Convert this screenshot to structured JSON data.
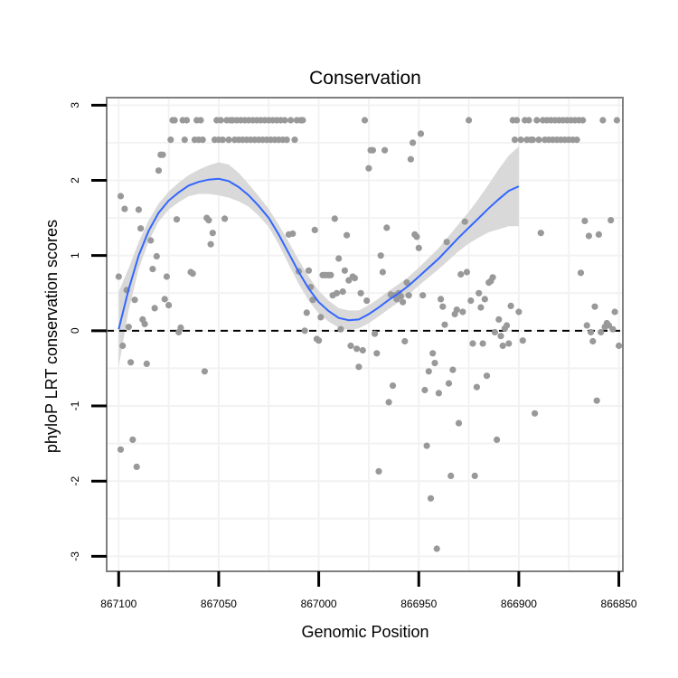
{
  "chart_data": {
    "type": "scatter",
    "title": "Conservation",
    "xlabel": "Genomic Position",
    "ylabel": "phyloP LRT conservation scores",
    "x_reversed": true,
    "xlim": [
      867106,
      866848
    ],
    "ylim": [
      -3.2,
      3.1
    ],
    "x_ticks": [
      867100,
      867050,
      867000,
      866950,
      866900,
      866850
    ],
    "x_tick_labels": [
      "867100",
      "867050",
      "867000",
      "866950",
      "866900",
      "866850"
    ],
    "y_ticks": [
      3,
      2,
      1,
      0,
      -1,
      -2,
      -3
    ],
    "y_tick_labels": [
      "3",
      "2",
      "1",
      "0",
      "-1",
      "-2",
      "-3"
    ],
    "reference_line": {
      "y": 0,
      "style": "dashed",
      "color": "#000000"
    },
    "grid": true,
    "colors": {
      "points": "#999999",
      "smooth_line": "#3366ff",
      "ribbon": "#d9d9d9",
      "panel_border": "#7f7f7f",
      "grid": "#f2f2f2"
    },
    "series": [
      {
        "type": "scatter",
        "points": [
          [
            867100,
            0.72
          ],
          [
            867099,
            1.79
          ],
          [
            867099,
            -1.58
          ],
          [
            867098,
            -0.2
          ],
          [
            867097,
            1.62
          ],
          [
            867096,
            0.54
          ],
          [
            867095,
            0.05
          ],
          [
            867094,
            -0.42
          ],
          [
            867093,
            -1.45
          ],
          [
            867092,
            0.41
          ],
          [
            867091,
            -1.81
          ],
          [
            867090,
            1.61
          ],
          [
            867089,
            1.36
          ],
          [
            867088,
            0.15
          ],
          [
            867087,
            0.09
          ],
          [
            867086,
            -0.44
          ],
          [
            867084,
            1.2
          ],
          [
            867083,
            0.82
          ],
          [
            867082,
            0.3
          ],
          [
            867081,
            0.99
          ],
          [
            867080,
            2.13
          ],
          [
            867079,
            2.34
          ],
          [
            867078,
            2.34
          ],
          [
            867077,
            0.42
          ],
          [
            867076,
            0.72
          ],
          [
            867075,
            0.34
          ],
          [
            867074,
            2.54
          ],
          [
            867073,
            2.8
          ],
          [
            867072,
            2.8
          ],
          [
            867071,
            1.48
          ],
          [
            867070,
            -0.02
          ],
          [
            867069,
            0.04
          ],
          [
            867068,
            2.8
          ],
          [
            867067,
            2.54
          ],
          [
            867066,
            2.8
          ],
          [
            867064,
            0.78
          ],
          [
            867063,
            0.76
          ],
          [
            867062,
            2.54
          ],
          [
            867061,
            2.8
          ],
          [
            867060,
            2.54
          ],
          [
            867059,
            2.8
          ],
          [
            867058,
            2.54
          ],
          [
            867057,
            -0.54
          ],
          [
            867056,
            1.5
          ],
          [
            867055,
            1.47
          ],
          [
            867054,
            1.15
          ],
          [
            867053,
            1.3
          ],
          [
            867052,
            2.54
          ],
          [
            867051,
            2.8
          ],
          [
            867050,
            2.54
          ],
          [
            867049,
            2.8
          ],
          [
            867048,
            2.54
          ],
          [
            867047,
            1.49
          ],
          [
            867046,
            2.8
          ],
          [
            867045,
            2.54
          ],
          [
            867044,
            2.8
          ],
          [
            867043,
            2.8
          ],
          [
            867042,
            2.54
          ],
          [
            867041,
            2.8
          ],
          [
            867040,
            2.54
          ],
          [
            867039,
            2.8
          ],
          [
            867038,
            2.54
          ],
          [
            867037,
            2.8
          ],
          [
            867036,
            2.54
          ],
          [
            867035,
            2.8
          ],
          [
            867034,
            2.54
          ],
          [
            867033,
            2.8
          ],
          [
            867032,
            2.54
          ],
          [
            867031,
            2.8
          ],
          [
            867030,
            2.54
          ],
          [
            867029,
            2.8
          ],
          [
            867028,
            2.54
          ],
          [
            867027,
            2.8
          ],
          [
            867026,
            2.54
          ],
          [
            867025,
            2.8
          ],
          [
            867024,
            2.54
          ],
          [
            867023,
            2.8
          ],
          [
            867022,
            2.54
          ],
          [
            867021,
            2.8
          ],
          [
            867020,
            2.54
          ],
          [
            867019,
            2.8
          ],
          [
            867018,
            2.54
          ],
          [
            867017,
            2.8
          ],
          [
            867016,
            2.54
          ],
          [
            867015,
            1.28
          ],
          [
            867014,
            2.8
          ],
          [
            867013,
            1.29
          ],
          [
            867012,
            2.54
          ],
          [
            867011,
            2.8
          ],
          [
            867010,
            0.79
          ],
          [
            867009,
            2.8
          ],
          [
            867008,
            2.8
          ],
          [
            867007,
            0.0
          ],
          [
            867006,
            0.24
          ],
          [
            867005,
            0.8
          ],
          [
            867004,
            0.58
          ],
          [
            867003,
            0.41
          ],
          [
            867002,
            1.34
          ],
          [
            867001,
            -0.11
          ],
          [
            867000,
            -0.13
          ],
          [
            866999,
            0.18
          ],
          [
            866998,
            0.74
          ],
          [
            866997,
            0.74
          ],
          [
            866996,
            0.74
          ],
          [
            866995,
            0.74
          ],
          [
            866994,
            0.74
          ],
          [
            866993,
            0.47
          ],
          [
            866992,
            1.49
          ],
          [
            866991,
            0.5
          ],
          [
            866990,
            0.96
          ],
          [
            866989,
            0.02
          ],
          [
            866988,
            0.52
          ],
          [
            866987,
            0.8
          ],
          [
            866986,
            1.27
          ],
          [
            866985,
            0.67
          ],
          [
            866984,
            -0.2
          ],
          [
            866983,
            0.72
          ],
          [
            866982,
            0.7
          ],
          [
            866981,
            -0.24
          ],
          [
            866980,
            -0.48
          ],
          [
            866979,
            0.5
          ],
          [
            866978,
            -0.26
          ],
          [
            866977,
            2.8
          ],
          [
            866976,
            0.4
          ],
          [
            866975,
            2.16
          ],
          [
            866974,
            2.4
          ],
          [
            866973,
            2.4
          ],
          [
            866972,
            -0.04
          ],
          [
            866971,
            -0.3
          ],
          [
            866970,
            -1.87
          ],
          [
            866969,
            1.0
          ],
          [
            866968,
            0.78
          ],
          [
            866967,
            2.4
          ],
          [
            866966,
            1.37
          ],
          [
            866965,
            -0.95
          ],
          [
            866964,
            0.48
          ],
          [
            866963,
            -0.73
          ],
          [
            866962,
            0.47
          ],
          [
            866961,
            0.42
          ],
          [
            866960,
            0.5
          ],
          [
            866959,
            0.46
          ],
          [
            866958,
            0.38
          ],
          [
            866957,
            -0.14
          ],
          [
            866956,
            0.64
          ],
          [
            866955,
            0.47
          ],
          [
            866954,
            2.28
          ],
          [
            866953,
            2.5
          ],
          [
            866952,
            1.28
          ],
          [
            866951,
            1.25
          ],
          [
            866950,
            1.1
          ],
          [
            866949,
            2.62
          ],
          [
            866948,
            0.47
          ],
          [
            866947,
            -0.79
          ],
          [
            866946,
            -1.53
          ],
          [
            866945,
            -0.54
          ],
          [
            866944,
            -2.23
          ],
          [
            866943,
            -0.3
          ],
          [
            866942,
            -0.43
          ],
          [
            866941,
            -2.9
          ],
          [
            866940,
            -0.83
          ],
          [
            866939,
            0.42
          ],
          [
            866938,
            0.32
          ],
          [
            866937,
            0.08
          ],
          [
            866936,
            1.18
          ],
          [
            866935,
            -0.7
          ],
          [
            866934,
            -1.93
          ],
          [
            866933,
            -0.52
          ],
          [
            866932,
            0.22
          ],
          [
            866931,
            0.28
          ],
          [
            866930,
            -1.23
          ],
          [
            866929,
            0.75
          ],
          [
            866928,
            0.25
          ],
          [
            866927,
            1.45
          ],
          [
            866926,
            0.78
          ],
          [
            866925,
            2.8
          ],
          [
            866924,
            0.4
          ],
          [
            866923,
            -0.17
          ],
          [
            866922,
            -1.93
          ],
          [
            866921,
            -0.75
          ],
          [
            866920,
            0.5
          ],
          [
            866919,
            0.31
          ],
          [
            866918,
            -0.17
          ],
          [
            866917,
            0.42
          ],
          [
            866916,
            -0.6
          ],
          [
            866915,
            0.64
          ],
          [
            866914,
            0.66
          ],
          [
            866913,
            0.71
          ],
          [
            866912,
            -0.02
          ],
          [
            866911,
            -1.45
          ],
          [
            866910,
            0.15
          ],
          [
            866909,
            -0.07
          ],
          [
            866908,
            -0.2
          ],
          [
            866907,
            0.03
          ],
          [
            866906,
            0.07
          ],
          [
            866905,
            -0.17
          ],
          [
            866904,
            0.33
          ],
          [
            866903,
            2.8
          ],
          [
            866902,
            2.54
          ],
          [
            866901,
            2.8
          ],
          [
            866900,
            0.25
          ],
          [
            866899,
            2.54
          ],
          [
            866898,
            -0.13
          ],
          [
            866897,
            2.8
          ],
          [
            866896,
            2.54
          ],
          [
            866895,
            2.8
          ],
          [
            866894,
            2.54
          ],
          [
            866893,
            2.54
          ],
          [
            866892,
            -1.1
          ],
          [
            866891,
            2.8
          ],
          [
            866890,
            2.54
          ],
          [
            866889,
            1.3
          ],
          [
            866888,
            2.8
          ],
          [
            866887,
            2.54
          ],
          [
            866886,
            2.8
          ],
          [
            866885,
            2.54
          ],
          [
            866884,
            2.8
          ],
          [
            866883,
            2.54
          ],
          [
            866882,
            2.8
          ],
          [
            866881,
            2.54
          ],
          [
            866880,
            2.8
          ],
          [
            866879,
            2.54
          ],
          [
            866878,
            2.8
          ],
          [
            866877,
            2.54
          ],
          [
            866876,
            2.8
          ],
          [
            866875,
            2.54
          ],
          [
            866874,
            2.8
          ],
          [
            866873,
            2.54
          ],
          [
            866872,
            2.8
          ],
          [
            866871,
            2.54
          ],
          [
            866870,
            2.8
          ],
          [
            866869,
            0.77
          ],
          [
            866868,
            2.8
          ],
          [
            866867,
            1.46
          ],
          [
            866866,
            0.07
          ],
          [
            866865,
            1.26
          ],
          [
            866864,
            -0.02
          ],
          [
            866863,
            -0.14
          ],
          [
            866862,
            0.32
          ],
          [
            866861,
            -0.93
          ],
          [
            866860,
            1.28
          ],
          [
            866859,
            -0.02
          ],
          [
            866858,
            2.8
          ],
          [
            866857,
            0.05
          ],
          [
            866856,
            0.1
          ],
          [
            866855,
            0.07
          ],
          [
            866854,
            1.47
          ],
          [
            866853,
            0.02
          ],
          [
            866852,
            0.25
          ],
          [
            866851,
            2.8
          ],
          [
            866850,
            -0.2
          ]
        ]
      },
      {
        "type": "smooth",
        "points": [
          [
            867100,
            0.02
          ],
          [
            867095,
            0.55
          ],
          [
            867090,
            1.0
          ],
          [
            867085,
            1.33
          ],
          [
            867080,
            1.57
          ],
          [
            867075,
            1.73
          ],
          [
            867070,
            1.84
          ],
          [
            867065,
            1.93
          ],
          [
            867060,
            1.98
          ],
          [
            867055,
            2.01
          ],
          [
            867050,
            2.02
          ],
          [
            867045,
            1.99
          ],
          [
            867040,
            1.91
          ],
          [
            867035,
            1.8
          ],
          [
            867030,
            1.66
          ],
          [
            867025,
            1.5
          ],
          [
            867020,
            1.28
          ],
          [
            867015,
            1.03
          ],
          [
            867010,
            0.78
          ],
          [
            867005,
            0.56
          ],
          [
            867000,
            0.38
          ],
          [
            866995,
            0.26
          ],
          [
            866990,
            0.17
          ],
          [
            866985,
            0.14
          ],
          [
            866980,
            0.15
          ],
          [
            866975,
            0.22
          ],
          [
            866970,
            0.31
          ],
          [
            866965,
            0.41
          ],
          [
            866960,
            0.5
          ],
          [
            866955,
            0.6
          ],
          [
            866950,
            0.72
          ],
          [
            866945,
            0.84
          ],
          [
            866940,
            0.96
          ],
          [
            866935,
            1.1
          ],
          [
            866930,
            1.24
          ],
          [
            866925,
            1.37
          ],
          [
            866920,
            1.5
          ],
          [
            866915,
            1.63
          ],
          [
            866910,
            1.75
          ],
          [
            866905,
            1.86
          ],
          [
            866900,
            1.92
          ]
        ],
        "ci_half_width": [
          0.5,
          0.28,
          0.18,
          0.14,
          0.12,
          0.12,
          0.13,
          0.14,
          0.16,
          0.19,
          0.22,
          0.22,
          0.19,
          0.15,
          0.13,
          0.12,
          0.13,
          0.15,
          0.16,
          0.16,
          0.15,
          0.14,
          0.13,
          0.13,
          0.12,
          0.12,
          0.12,
          0.12,
          0.12,
          0.12,
          0.12,
          0.13,
          0.14,
          0.16,
          0.18,
          0.21,
          0.26,
          0.32,
          0.4,
          0.47,
          0.53
        ]
      }
    ]
  }
}
